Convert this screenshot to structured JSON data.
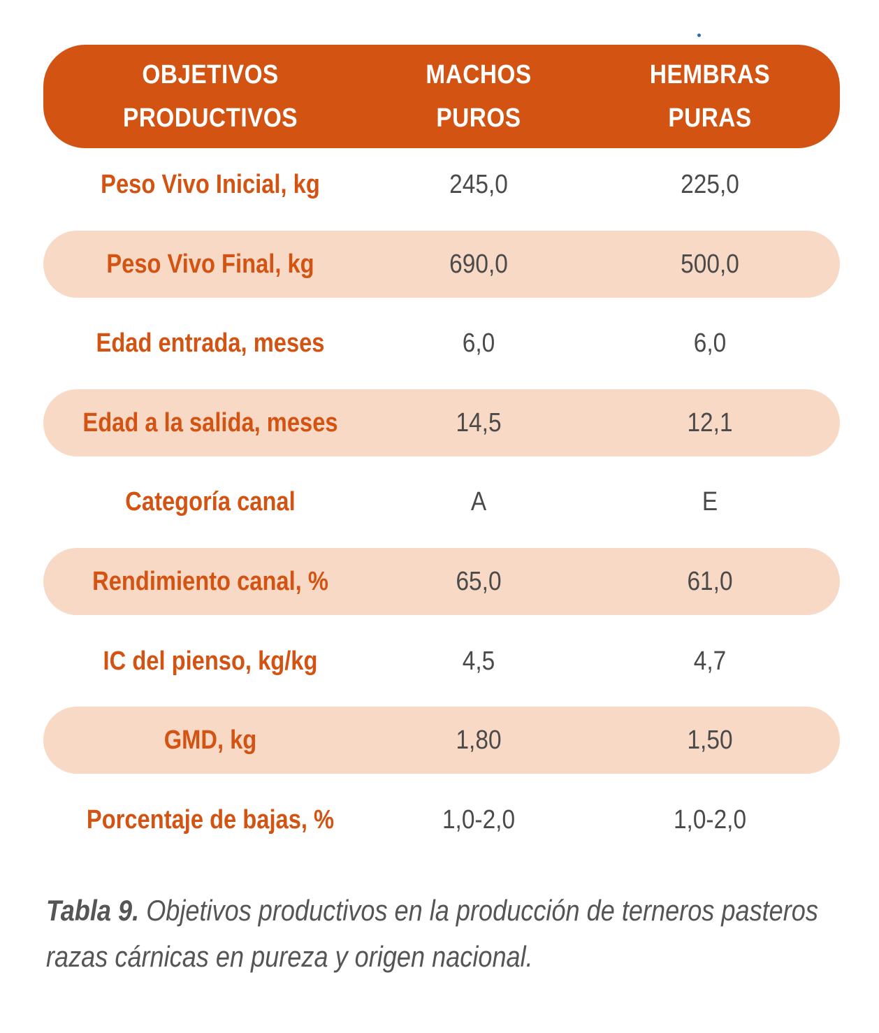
{
  "header": {
    "col1": [
      "OBJETIVOS",
      "PRODUCTIVOS"
    ],
    "col2": [
      "MACHOS",
      "PUROS"
    ],
    "col3": [
      "HEMBRAS",
      "PURAS"
    ]
  },
  "rows": [
    {
      "label": "Peso Vivo Inicial, kg",
      "machos": "245,0",
      "hembras": "225,0"
    },
    {
      "label": "Peso Vivo Final, kg",
      "machos": "690,0",
      "hembras": "500,0"
    },
    {
      "label": "Edad entrada, meses",
      "machos": "6,0",
      "hembras": "6,0"
    },
    {
      "label": "Edad a la salida, meses",
      "machos": "14,5",
      "hembras": "12,1"
    },
    {
      "label": "Categoría canal",
      "machos": "A",
      "hembras": "E"
    },
    {
      "label": "Rendimiento canal, %",
      "machos": "65,0",
      "hembras": "61,0"
    },
    {
      "label": "IC del pienso, kg/kg",
      "machos": "4,5",
      "hembras": "4,7"
    },
    {
      "label": "GMD, kg",
      "machos": "1,80",
      "hembras": "1,50"
    },
    {
      "label": "Porcentaje de bajas, %",
      "machos": "1,0-2,0",
      "hembras": "1,0-2,0"
    }
  ],
  "caption": {
    "label": "Tabla 9.",
    "line1": " Objetivos productivos en la producción de terneros pasteros",
    "line2": "razas cárnicas en pureza y origen nacional."
  },
  "colors": {
    "accent": "#d35312",
    "row_shade": "#f7d9c6",
    "value_text": "#4a4a4a"
  }
}
